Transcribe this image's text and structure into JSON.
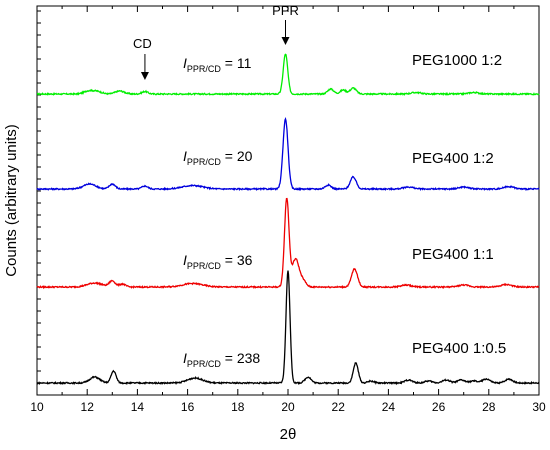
{
  "chart_data": {
    "type": "line",
    "xlabel": "2θ",
    "ylabel": "Counts (arbitrary units)",
    "xlim": [
      10,
      30
    ],
    "xticks": [
      10,
      12,
      14,
      16,
      18,
      20,
      22,
      24,
      26,
      28,
      30
    ],
    "grid": false,
    "legend": "none",
    "annotations": [
      {
        "text": "CD",
        "x": 14.3
      },
      {
        "text": "PPR",
        "x": 19.9
      }
    ],
    "series": [
      {
        "name": "PEG1000 1:2",
        "color": "#00ee00",
        "ratio_value": "11",
        "peaks": [
          {
            "x": 19.9,
            "h": 40,
            "w": 0.09
          },
          {
            "x": 12.05,
            "h": 3,
            "w": 0.18
          },
          {
            "x": 12.4,
            "h": 2.5,
            "w": 0.18
          },
          {
            "x": 13.3,
            "h": 3,
            "w": 0.18
          },
          {
            "x": 14.3,
            "h": 2.5,
            "w": 0.12
          },
          {
            "x": 21.7,
            "h": 5,
            "w": 0.12
          },
          {
            "x": 22.2,
            "h": 4,
            "w": 0.12
          },
          {
            "x": 22.6,
            "h": 6,
            "w": 0.12
          },
          {
            "x": 25.1,
            "h": 1.5,
            "w": 0.2
          },
          {
            "x": 27.4,
            "h": 1.5,
            "w": 0.2
          }
        ]
      },
      {
        "name": "PEG400 1:2",
        "color": "#0000dd",
        "ratio_value": "20",
        "peaks": [
          {
            "x": 19.9,
            "h": 70,
            "w": 0.1
          },
          {
            "x": 12.1,
            "h": 5,
            "w": 0.25
          },
          {
            "x": 13.0,
            "h": 5,
            "w": 0.12
          },
          {
            "x": 14.3,
            "h": 3,
            "w": 0.12
          },
          {
            "x": 16.2,
            "h": 3.5,
            "w": 0.4
          },
          {
            "x": 21.6,
            "h": 4,
            "w": 0.12
          },
          {
            "x": 22.6,
            "h": 12,
            "w": 0.12
          },
          {
            "x": 24.8,
            "h": 2,
            "w": 0.2
          },
          {
            "x": 27.0,
            "h": 2,
            "w": 0.2
          },
          {
            "x": 28.8,
            "h": 2.5,
            "w": 0.2
          }
        ]
      },
      {
        "name": "PEG400 1:1",
        "color": "#ee0000",
        "ratio_value": "36",
        "peaks": [
          {
            "x": 19.95,
            "h": 88,
            "w": 0.09
          },
          {
            "x": 20.3,
            "h": 28,
            "w": 0.14
          },
          {
            "x": 20.6,
            "h": 6,
            "w": 0.12
          },
          {
            "x": 12.3,
            "h": 4,
            "w": 0.3
          },
          {
            "x": 13.0,
            "h": 6,
            "w": 0.12
          },
          {
            "x": 13.4,
            "h": 3,
            "w": 0.12
          },
          {
            "x": 16.2,
            "h": 3.5,
            "w": 0.4
          },
          {
            "x": 22.65,
            "h": 18,
            "w": 0.12
          },
          {
            "x": 24.7,
            "h": 2,
            "w": 0.2
          },
          {
            "x": 27.0,
            "h": 2,
            "w": 0.2
          },
          {
            "x": 28.7,
            "h": 2.5,
            "w": 0.2
          }
        ]
      },
      {
        "name": "PEG400 1:0.5",
        "color": "#000000",
        "ratio_value": "238",
        "peaks": [
          {
            "x": 20.0,
            "h": 112,
            "w": 0.08
          },
          {
            "x": 12.3,
            "h": 6,
            "w": 0.2
          },
          {
            "x": 13.05,
            "h": 12,
            "w": 0.1
          },
          {
            "x": 16.3,
            "h": 5,
            "w": 0.3
          },
          {
            "x": 20.8,
            "h": 6,
            "w": 0.12
          },
          {
            "x": 22.7,
            "h": 20,
            "w": 0.1
          },
          {
            "x": 23.3,
            "h": 2,
            "w": 0.12
          },
          {
            "x": 24.8,
            "h": 3,
            "w": 0.15
          },
          {
            "x": 25.6,
            "h": 2,
            "w": 0.15
          },
          {
            "x": 26.3,
            "h": 3,
            "w": 0.15
          },
          {
            "x": 26.9,
            "h": 3,
            "w": 0.15
          },
          {
            "x": 27.4,
            "h": 2,
            "w": 0.15
          },
          {
            "x": 27.9,
            "h": 4,
            "w": 0.15
          },
          {
            "x": 28.8,
            "h": 4,
            "w": 0.15
          }
        ]
      }
    ]
  }
}
